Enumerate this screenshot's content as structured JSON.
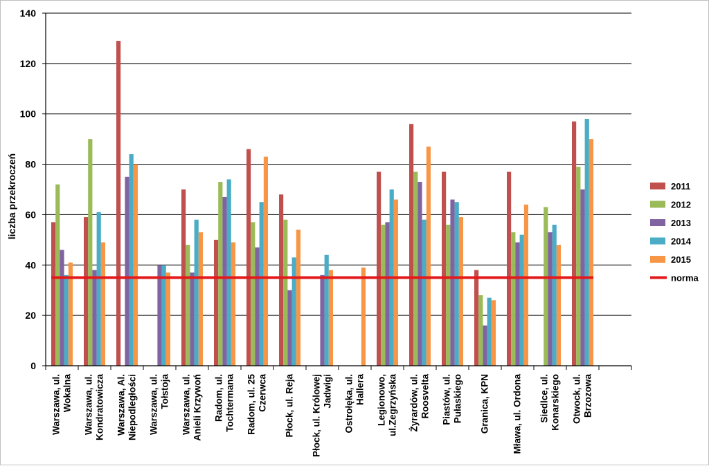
{
  "chart_data": {
    "type": "bar",
    "title": "",
    "xlabel": "",
    "ylabel": "liczba przekroczeń",
    "ylim": [
      0,
      140
    ],
    "yticks": [
      0,
      20,
      40,
      60,
      80,
      100,
      120,
      140
    ],
    "grid": true,
    "legend_position": "right",
    "categories": [
      [
        "Warszawa, ul.",
        "Wokalna"
      ],
      [
        "Warszawa, ul.",
        "Kondratowicza"
      ],
      [
        "Warszawa, Al.",
        "Niepodległości"
      ],
      [
        "Warszawa, ul.",
        "Tołstoja"
      ],
      [
        "Warszawa, ul.",
        "Anieli Krzywoń"
      ],
      [
        "Radom, ul.",
        "Tochtermana"
      ],
      [
        "Radom, ul. 25",
        "Czerwca"
      ],
      [
        "Płock, ul. Reja"
      ],
      [
        "Płock, ul. Królowej",
        "Jadwigi"
      ],
      [
        "Ostrołęka, ul.",
        "Hallera"
      ],
      [
        "Legionowo,",
        "ul.Zegrzyńska"
      ],
      [
        "Żyrardów, ul.",
        "Roosvelta"
      ],
      [
        "Piastów, ul.",
        "Pułaskiego"
      ],
      [
        "Granica, KPN"
      ],
      [
        "Mława, ul. Ordona"
      ],
      [
        "Siedlce, ul.",
        "Konarskiego"
      ],
      [
        "Otwock, ul.",
        "Brzozowa"
      ]
    ],
    "series": [
      {
        "name": "2011",
        "color": "#c0504d",
        "values": [
          57,
          59,
          129,
          null,
          70,
          50,
          86,
          68,
          null,
          null,
          77,
          96,
          77,
          38,
          77,
          null,
          97
        ]
      },
      {
        "name": "2012",
        "color": "#9bbb59",
        "values": [
          72,
          90,
          null,
          null,
          48,
          73,
          57,
          58,
          null,
          null,
          56,
          77,
          56,
          28,
          53,
          63,
          79
        ]
      },
      {
        "name": "2013",
        "color": "#8064a2",
        "values": [
          46,
          38,
          75,
          40,
          37,
          67,
          47,
          30,
          36,
          null,
          57,
          73,
          66,
          16,
          49,
          53,
          70
        ]
      },
      {
        "name": "2014",
        "color": "#4bacc6",
        "values": [
          36,
          61,
          84,
          40,
          58,
          74,
          65,
          43,
          44,
          null,
          70,
          58,
          65,
          27,
          52,
          56,
          98
        ]
      },
      {
        "name": "2015",
        "color": "#f79646",
        "values": [
          41,
          49,
          80,
          37,
          53,
          49,
          83,
          54,
          38,
          39,
          66,
          87,
          59,
          26,
          64,
          48,
          90
        ]
      }
    ],
    "reference_line": {
      "name": "norma",
      "value": 35,
      "color": "#e31a1c"
    }
  }
}
